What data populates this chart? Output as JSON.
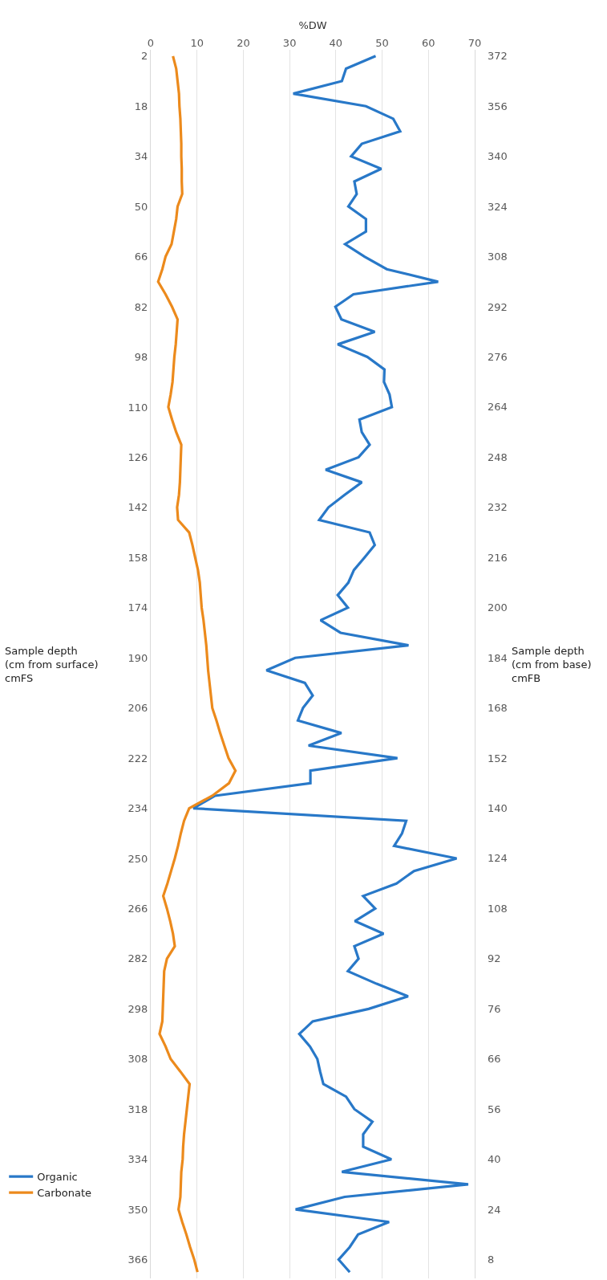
{
  "chart_data": {
    "type": "line",
    "orientation": "horizontal",
    "xlabel": "%DW",
    "ylabel": "Sample depth\n(cm from surface)\ncmFS",
    "y2label": "Sample depth\n(cm from base)\ncmFB",
    "categories": [
      "2",
      null,
      null,
      null,
      "18",
      null,
      null,
      null,
      "34",
      null,
      null,
      null,
      "50",
      null,
      null,
      null,
      "66",
      null,
      null,
      null,
      "82",
      null,
      null,
      null,
      "98",
      null,
      null,
      null,
      "110",
      null,
      null,
      null,
      "126",
      null,
      null,
      null,
      "142",
      null,
      null,
      null,
      "158",
      null,
      null,
      null,
      "174",
      null,
      null,
      null,
      "190",
      null,
      null,
      null,
      "206",
      null,
      null,
      null,
      "222",
      null,
      null,
      null,
      "234",
      null,
      null,
      null,
      "250",
      null,
      null,
      null,
      "266",
      null,
      null,
      null,
      "282",
      null,
      null,
      null,
      "298",
      null,
      null,
      null,
      "308",
      null,
      null,
      null,
      "318",
      null,
      null,
      null,
      "334",
      null,
      null,
      null,
      "350",
      null,
      null,
      null,
      "366",
      null
    ],
    "y2_categories": [
      "372",
      null,
      null,
      null,
      "356",
      null,
      null,
      null,
      "340",
      null,
      null,
      null,
      "324",
      null,
      null,
      null,
      "308",
      null,
      null,
      null,
      "292",
      null,
      null,
      null,
      "276",
      null,
      null,
      null,
      "264",
      null,
      null,
      null,
      "248",
      null,
      null,
      null,
      "232",
      null,
      null,
      null,
      "216",
      null,
      null,
      null,
      "200",
      null,
      null,
      null,
      "184",
      null,
      null,
      null,
      "168",
      null,
      null,
      null,
      "152",
      null,
      null,
      null,
      "140",
      null,
      null,
      null,
      "124",
      null,
      null,
      null,
      "108",
      null,
      null,
      null,
      "92",
      null,
      null,
      null,
      "76",
      null,
      null,
      null,
      "66",
      null,
      null,
      null,
      "56",
      null,
      null,
      null,
      "40",
      null,
      null,
      null,
      "24",
      null,
      null,
      null,
      "8",
      null
    ],
    "series": [
      {
        "name": "Organic",
        "color": "#2878c8",
        "values": [
          48.6,
          42.2,
          41.3,
          30.8,
          46.5,
          52.4,
          53.9,
          45.6,
          43.3,
          49.8,
          44.0,
          44.5,
          42.7,
          46.5,
          46.5,
          42.0,
          46.2,
          51.0,
          62.1,
          43.8,
          39.9,
          41.2,
          48.4,
          40.4,
          46.8,
          50.5,
          50.4,
          51.6,
          52.1,
          45.1,
          45.6,
          47.3,
          44.9,
          37.8,
          45.6,
          41.9,
          38.4,
          36.4,
          47.3,
          48.4,
          46.2,
          43.9,
          42.7,
          40.4,
          42.6,
          36.7,
          41.0,
          55.7,
          31.2,
          25.0,
          33.3,
          35.0,
          32.9,
          31.8,
          41.2,
          34.1,
          53.3,
          34.5,
          34.5,
          13.9,
          9.2,
          55.2,
          54.3,
          52.6,
          66.1,
          56.9,
          53.1,
          45.9,
          48.5,
          44.1,
          50.3,
          44.0,
          44.9,
          42.6,
          48.8,
          55.6,
          47.1,
          35.0,
          32.1,
          34.4,
          36.0,
          36.6,
          37.3,
          42.2,
          44.0,
          47.9,
          45.9,
          45.9,
          52.0,
          41.3,
          68.6,
          41.9,
          31.3,
          51.5,
          44.8,
          43.0,
          40.6,
          43.0
        ]
      },
      {
        "name": "Carbonate",
        "color": "#ec8a1c",
        "values": [
          4.8,
          5.5,
          5.8,
          6.1,
          6.2,
          6.4,
          6.5,
          6.6,
          6.6,
          6.7,
          6.7,
          6.8,
          5.8,
          5.5,
          5.0,
          4.5,
          3.2,
          2.5,
          1.6,
          3.2,
          4.6,
          5.8,
          5.6,
          5.4,
          5.1,
          4.9,
          4.7,
          4.3,
          3.8,
          4.6,
          5.5,
          6.6,
          6.5,
          6.4,
          6.3,
          6.1,
          5.7,
          5.9,
          8.3,
          9.0,
          9.6,
          10.2,
          10.6,
          10.8,
          11.0,
          11.4,
          11.7,
          12.0,
          12.2,
          12.4,
          12.7,
          13.0,
          13.3,
          14.2,
          15.0,
          15.9,
          16.8,
          18.3,
          16.9,
          13.3,
          8.3,
          7.2,
          6.5,
          5.9,
          5.2,
          4.4,
          3.6,
          2.7,
          3.5,
          4.2,
          4.8,
          5.2,
          3.5,
          2.9,
          2.8,
          2.7,
          2.6,
          2.5,
          1.9,
          3.2,
          4.3,
          6.4,
          8.4,
          8.1,
          7.8,
          7.5,
          7.2,
          7.0,
          6.9,
          6.6,
          6.5,
          6.4,
          6.0,
          6.8,
          7.7,
          8.5,
          9.4,
          10.1
        ]
      }
    ],
    "xlim": [
      0,
      70
    ],
    "xticks": [
      0,
      10,
      20,
      30,
      40,
      50,
      60,
      70
    ],
    "grid": "x",
    "legend": "bottom left"
  }
}
